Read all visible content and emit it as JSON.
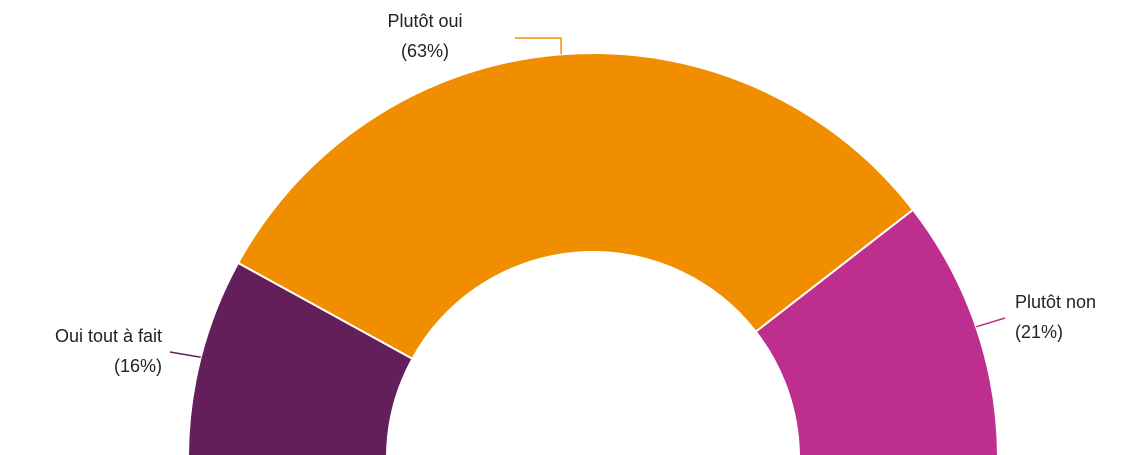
{
  "chart_data": {
    "type": "half-donut",
    "categories": [
      "Oui tout à fait",
      "Plutôt oui",
      "Plutôt non"
    ],
    "values": [
      16,
      63,
      21
    ],
    "value_labels": [
      "(16%)",
      "(63%)",
      "(21%)"
    ],
    "colors": [
      "#621f5a",
      "#f08e00",
      "#bd2e8f"
    ]
  }
}
